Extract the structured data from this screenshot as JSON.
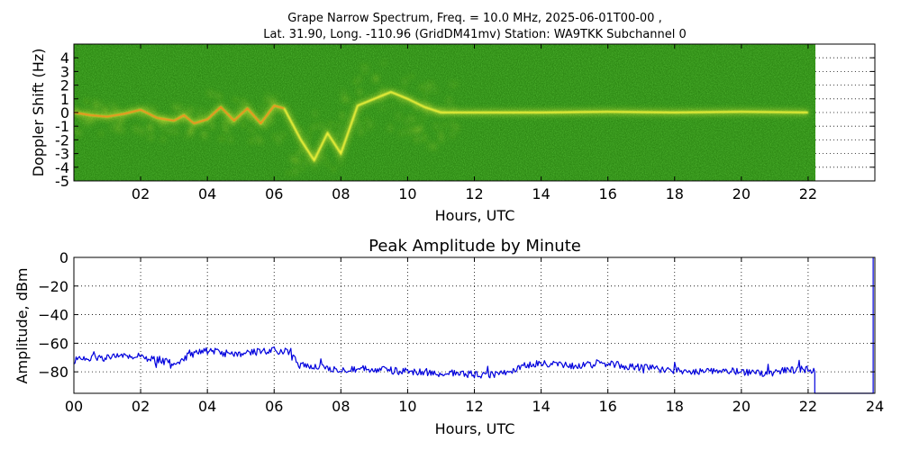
{
  "title": {
    "line1": "Grape Narrow Spectrum, Freq. = 10.0 MHz, 2025-06-01T00-00 ,",
    "line2": "Lat.  31.90, Long. -110.96 (GridDM41mv) Station: WA9TKK Subchannel 0"
  },
  "chart_data": [
    {
      "type": "heatmap",
      "title": "",
      "xlabel": "Hours, UTC",
      "ylabel": "Doppler Shift (Hz)",
      "xlim": [
        0,
        24
      ],
      "ylim": [
        -5,
        5
      ],
      "x_ticks": [
        2,
        4,
        6,
        8,
        10,
        12,
        14,
        16,
        18,
        20,
        22
      ],
      "x_tick_labels": [
        "02",
        "04",
        "06",
        "08",
        "10",
        "12",
        "14",
        "16",
        "18",
        "20",
        "22"
      ],
      "y_ticks": [
        4,
        3,
        2,
        1,
        0,
        -1,
        -2,
        -3,
        -4,
        -5
      ],
      "y_tick_labels": [
        "4",
        "3",
        "2",
        "1",
        "0",
        "-1",
        "-2",
        "-3",
        "-4",
        "-5"
      ],
      "data_end_hour": 22.0,
      "background_color": "#2e8a14",
      "trace_color": "#f2f23a",
      "peak_color": "#ff2a00",
      "grid": "dotted, empty region only",
      "trace": {
        "x": [
          0,
          0.5,
          1,
          1.5,
          2,
          2.5,
          3,
          3.3,
          3.6,
          4,
          4.4,
          4.8,
          5.2,
          5.6,
          6,
          6.3,
          6.8,
          7.2,
          7.6,
          8,
          8.5,
          9,
          9.5,
          10,
          10.5,
          11,
          12.5,
          14,
          16,
          18,
          20,
          22
        ],
        "y": [
          0,
          -0.2,
          -0.3,
          -0.1,
          0.2,
          -0.4,
          -0.6,
          -0.2,
          -0.8,
          -0.5,
          0.4,
          -0.6,
          0.3,
          -0.8,
          0.5,
          0.3,
          -2.0,
          -3.5,
          -1.5,
          -3.0,
          0.5,
          1.0,
          1.5,
          1.0,
          0.4,
          0.0,
          0.0,
          0.0,
          0.05,
          0.0,
          0.05,
          0.0
        ]
      }
    },
    {
      "type": "line",
      "title": "Peak Amplitude by Minute",
      "xlabel": "Hours, UTC",
      "ylabel": "Amplitude, dBm",
      "xlim": [
        0,
        24
      ],
      "ylim": [
        -95,
        0
      ],
      "x_ticks": [
        0,
        2,
        4,
        6,
        8,
        10,
        12,
        14,
        16,
        18,
        20,
        22,
        24
      ],
      "x_tick_labels": [
        "00",
        "02",
        "04",
        "06",
        "08",
        "10",
        "12",
        "14",
        "16",
        "18",
        "20",
        "22",
        "24"
      ],
      "y_ticks": [
        0,
        -20,
        -40,
        -60,
        -80
      ],
      "y_tick_labels": [
        "0",
        "−20",
        "−40",
        "−60",
        "−80"
      ],
      "grid": true,
      "line_color": "#0000dd",
      "series": [
        {
          "x": [
            0,
            0.5,
            1,
            1.5,
            2,
            2.5,
            3,
            3.5,
            4,
            4.5,
            5,
            5.5,
            6,
            6.5,
            6.7,
            7,
            7.5,
            8,
            8.5,
            9,
            9.5,
            10,
            10.5,
            11,
            11.5,
            12,
            12.5,
            13,
            13.5,
            14,
            14.5,
            15,
            15.5,
            16,
            16.5,
            17,
            17.5,
            18,
            18.5,
            19,
            19.5,
            20,
            20.5,
            21,
            21.5,
            22,
            22.2,
            22.2,
            23.95,
            23.95
          ],
          "y": [
            -72,
            -71,
            -70,
            -69,
            -69,
            -72,
            -74,
            -68,
            -65,
            -67,
            -68,
            -66,
            -65,
            -66,
            -75,
            -76,
            -77,
            -78,
            -78,
            -78,
            -79,
            -80,
            -80,
            -81,
            -81,
            -82,
            -82,
            -80,
            -76,
            -74,
            -75,
            -76,
            -75,
            -74,
            -76,
            -77,
            -78,
            -79,
            -80,
            -79,
            -79,
            -80,
            -81,
            -80,
            -79,
            -78,
            -80,
            -95,
            -95,
            0
          ]
        }
      ]
    }
  ]
}
